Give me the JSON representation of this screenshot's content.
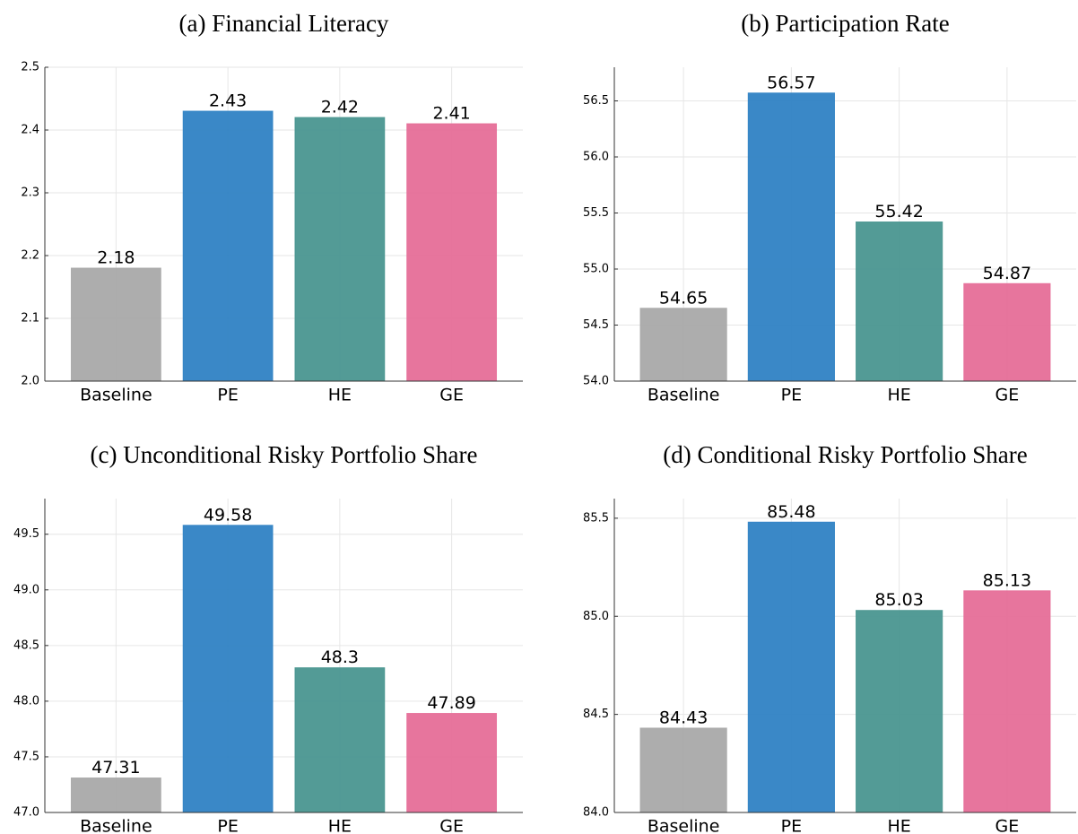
{
  "chart_data": [
    {
      "type": "bar",
      "title": "(a) Financial Literacy",
      "categories": [
        "Baseline",
        "PE",
        "HE",
        "GE"
      ],
      "values": [
        2.18,
        2.43,
        2.42,
        2.41
      ],
      "colors": [
        "#a9a9a9",
        "#2f82c4",
        "#4a9690",
        "#e66e98"
      ],
      "ylim": [
        2.0,
        2.5
      ],
      "yticks": [
        {
          "value": 2.0,
          "label": "2.0"
        },
        2.1,
        2.2,
        2.3,
        2.4,
        2.5
      ],
      "grid": true
    },
    {
      "type": "bar",
      "title": "(b) Participation Rate",
      "categories": [
        "Baseline",
        "PE",
        "HE",
        "GE"
      ],
      "values": [
        54.65,
        56.57,
        55.42,
        54.87
      ],
      "colors": [
        "#a9a9a9",
        "#2f82c4",
        "#4a9690",
        "#e66e98"
      ],
      "ylim": [
        54.0,
        56.8
      ],
      "yticks": [
        {
          "value": 54.0,
          "label": "54.0"
        },
        54.5,
        {
          "value": 55.0,
          "label": "55.0"
        },
        55.5,
        {
          "value": 56.0,
          "label": "56.0"
        },
        56.5
      ],
      "grid": true
    },
    {
      "type": "bar",
      "title": "(c) Unconditional Risky Portfolio Share",
      "categories": [
        "Baseline",
        "PE",
        "HE",
        "GE"
      ],
      "values": [
        47.31,
        49.58,
        48.3,
        47.89
      ],
      "colors": [
        "#a9a9a9",
        "#2f82c4",
        "#4a9690",
        "#e66e98"
      ],
      "ylim": [
        47.0,
        49.82
      ],
      "yticks": [
        {
          "value": 47.0,
          "label": "47.0"
        },
        47.5,
        {
          "value": 48.0,
          "label": "48.0"
        },
        48.5,
        {
          "value": 49.0,
          "label": "49.0"
        },
        49.5
      ],
      "grid": true
    },
    {
      "type": "bar",
      "title": "(d) Conditional Risky Portfolio Share",
      "categories": [
        "Baseline",
        "PE",
        "HE",
        "GE"
      ],
      "values": [
        84.43,
        85.48,
        85.03,
        85.13
      ],
      "colors": [
        "#a9a9a9",
        "#2f82c4",
        "#4a9690",
        "#e66e98"
      ],
      "ylim": [
        84.0,
        85.6
      ],
      "yticks": [
        {
          "value": 84.0,
          "label": "84.0"
        },
        84.5,
        {
          "value": 85.0,
          "label": "85.0"
        },
        85.5
      ],
      "grid": true
    }
  ]
}
